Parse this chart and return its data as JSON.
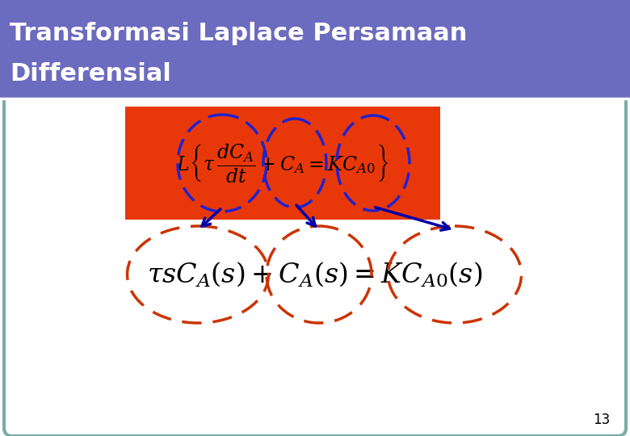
{
  "title_line1": "Transformasi Laplace Persamaan",
  "title_line2": "Differensial",
  "title_bg_color": "#6B6BBF",
  "title_text_color": "#FFFFFF",
  "slide_bg_color": "#FFFFFF",
  "slide_border_color": "#7AADA8",
  "red_box_color": "#E8380A",
  "page_number": "13",
  "dashed_circle_color_top": "#2222CC",
  "dashed_circle_color_bottom": "#CC3300",
  "arrow_color": "#0000AA"
}
